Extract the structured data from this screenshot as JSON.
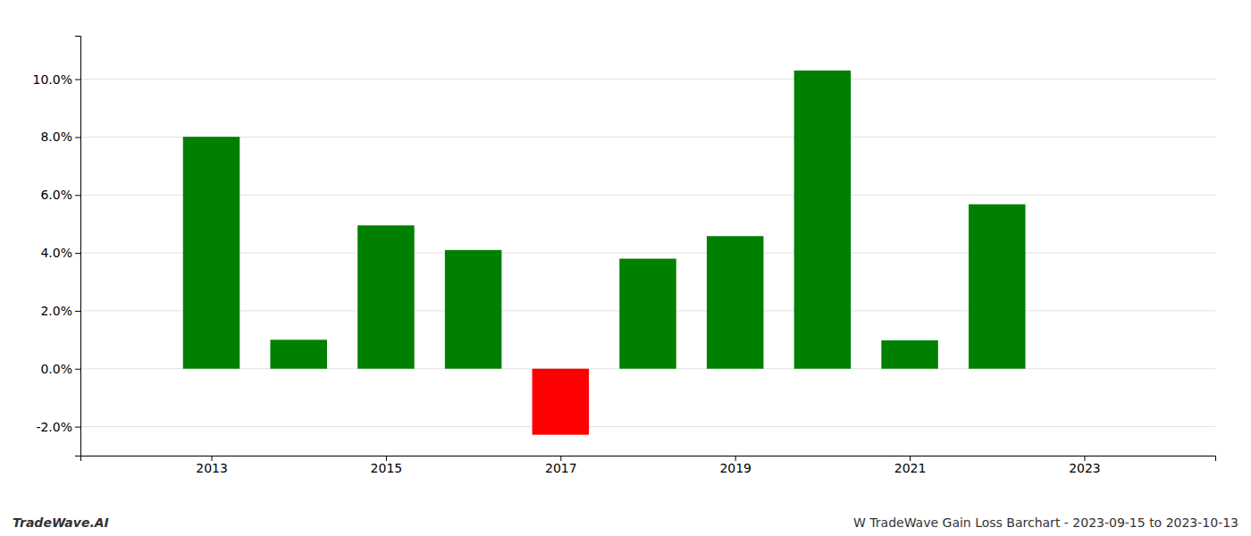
{
  "chart_data": {
    "type": "bar",
    "title": "W TradeWave Gain Loss Barchart - 2023-09-15 to 2023-10-13",
    "annotations": [
      "TradeWave.AI"
    ],
    "x": [
      2013,
      2014,
      2015,
      2016,
      2017,
      2018,
      2019,
      2020,
      2021,
      2022
    ],
    "values": [
      0.0801,
      0.01,
      0.0495,
      0.041,
      -0.0228,
      0.038,
      0.0458,
      0.103,
      0.0098,
      0.0568
    ],
    "colors": [
      "#008000",
      "#008000",
      "#008000",
      "#008000",
      "#ff0000",
      "#008000",
      "#008000",
      "#008000",
      "#008000",
      "#008000"
    ],
    "xlim": [
      2011.5,
      2024.5
    ],
    "xticks": [
      2013,
      2015,
      2017,
      2019,
      2021,
      2023
    ],
    "ylim": [
      -0.03,
      0.115
    ],
    "yticks": [
      {
        "value": -0.02,
        "label": "-2.0%"
      },
      {
        "value": 0.0,
        "label": "0.0%"
      },
      {
        "value": 0.02,
        "label": "2.0%"
      },
      {
        "value": 0.04,
        "label": "4.0%"
      },
      {
        "value": 0.06,
        "label": "6.0%"
      },
      {
        "value": 0.08,
        "label": "8.0%"
      },
      {
        "value": 0.1,
        "label": "10.0%"
      }
    ],
    "grid": true
  }
}
